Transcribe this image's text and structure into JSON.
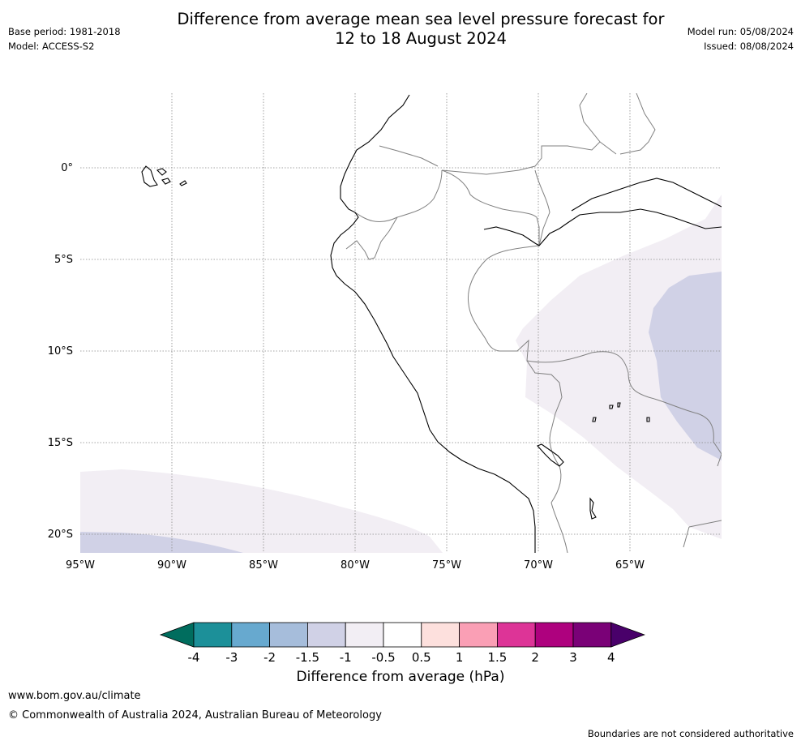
{
  "header": {
    "title_line1": "Difference from average mean sea level pressure forecast for",
    "title_line2": "12 to 18 August 2024",
    "base_period": "Base period: 1981-2018",
    "model": "Model: ACCESS-S2",
    "model_run": "Model run: 05/08/2024",
    "issued": "Issued: 08/08/2024"
  },
  "map": {
    "lon_labels": [
      "95°W",
      "90°W",
      "85°W",
      "80°W",
      "75°W",
      "70°W",
      "65°W"
    ],
    "lat_labels": [
      "0°",
      "5°S",
      "10°S",
      "15°S",
      "20°S"
    ],
    "colors": {
      "light_lavender": "#f2eef4",
      "lavender": "#d0d1e6",
      "coast": "#000000",
      "border": "#808080",
      "grid": "#888888"
    }
  },
  "colorbar": {
    "tick_labels": [
      "-4",
      "-3",
      "-2",
      "-1.5",
      "-1",
      "-0.5",
      "0.5",
      "1",
      "1.5",
      "2",
      "3",
      "4"
    ],
    "colors": [
      "#006d5e",
      "#1c9099",
      "#67a9cf",
      "#a6bddb",
      "#d0d1e6",
      "#f2eef4",
      "#ffffff",
      "#fde0dd",
      "#fa9fb5",
      "#dd3497",
      "#ae017e",
      "#7a0177",
      "#49006a"
    ],
    "label": "Difference from average (hPa)"
  },
  "footer": {
    "url": "www.bom.gov.au/climate",
    "copyright": "© Commonwealth of Australia 2024, Australian Bureau of Meteorology",
    "note": "Boundaries are not considered authoritative"
  }
}
